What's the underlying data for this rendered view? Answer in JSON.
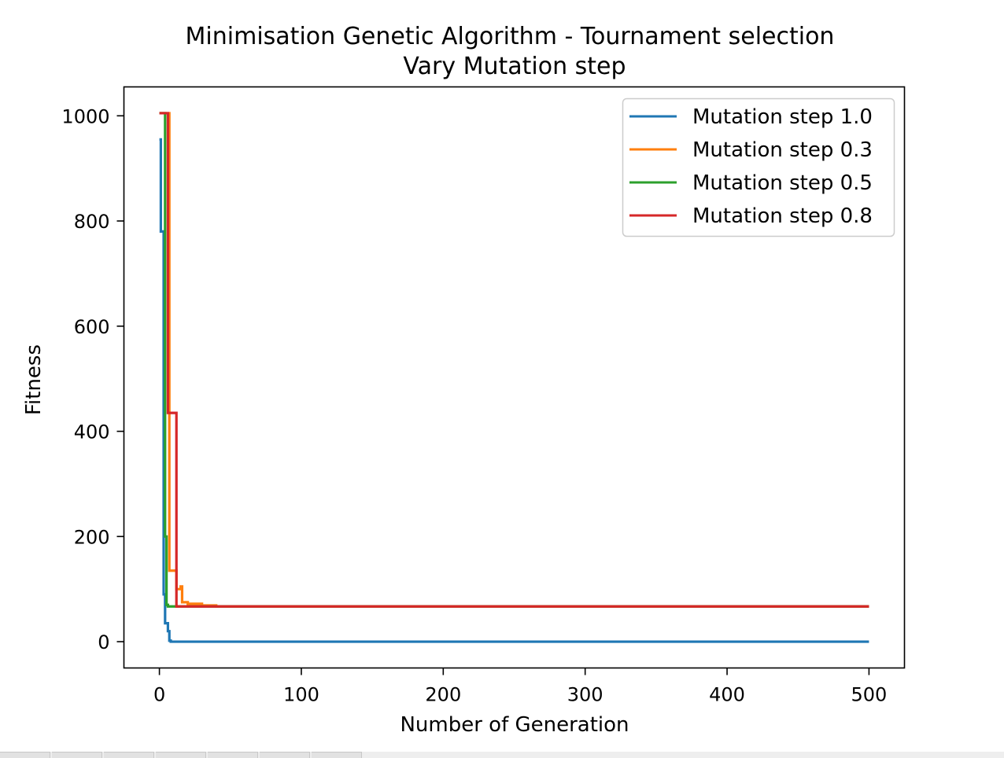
{
  "chart_data": {
    "type": "line",
    "title": "Minimisation Genetic Algorithm - Tournament selection",
    "subtitle": "Vary Mutation step",
    "xlabel": "Number of Generation",
    "ylabel": "Fitness",
    "xlim": [
      -25,
      525
    ],
    "ylim": [
      -50,
      1055
    ],
    "xticks": [
      0,
      100,
      200,
      300,
      400,
      500
    ],
    "yticks": [
      0,
      200,
      400,
      600,
      800,
      1000
    ],
    "grid": false,
    "legend_position": "top-right",
    "series": [
      {
        "name": "Mutation step 1.0",
        "color": "#1f77b4",
        "x": [
          0,
          1,
          1,
          2,
          2,
          3,
          3,
          4,
          4,
          5,
          5,
          6,
          6,
          7,
          7,
          8,
          8,
          500
        ],
        "y": [
          955,
          955,
          780,
          780,
          780,
          780,
          90,
          90,
          35,
          35,
          35,
          35,
          20,
          20,
          2,
          2,
          0,
          0
        ]
      },
      {
        "name": "Mutation step 0.3",
        "color": "#ff7f0e",
        "x": [
          0,
          6,
          6,
          7,
          7,
          12,
          12,
          15,
          15,
          16,
          16,
          20,
          20,
          30,
          30,
          40,
          40,
          500
        ],
        "y": [
          1005,
          1005,
          1005,
          1005,
          135,
          135,
          100,
          100,
          105,
          105,
          75,
          75,
          72,
          72,
          69,
          69,
          67,
          67
        ]
      },
      {
        "name": "Mutation step 0.5",
        "color": "#2ca02c",
        "x": [
          0,
          3,
          3,
          4,
          4,
          5,
          5,
          6,
          6,
          7,
          7,
          500
        ],
        "y": [
          1005,
          1005,
          1005,
          1005,
          200,
          200,
          70,
          70,
          67,
          67,
          67,
          67
        ]
      },
      {
        "name": "Mutation step 0.8",
        "color": "#d62728",
        "x": [
          0,
          6,
          6,
          12,
          12,
          13,
          13,
          500
        ],
        "y": [
          1005,
          1005,
          435,
          435,
          67,
          67,
          67,
          67
        ]
      }
    ]
  }
}
